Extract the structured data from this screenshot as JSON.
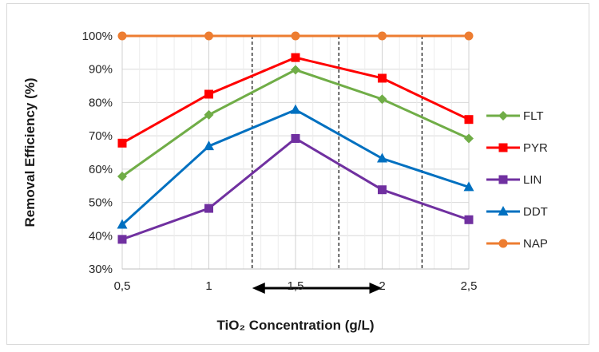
{
  "chart_data": {
    "type": "line",
    "title": "",
    "xlabel": "TiO₂ Concentration (g/L)",
    "ylabel": "Removal Efficiency (%)",
    "x": [
      0.5,
      1,
      1.5,
      2,
      2.5
    ],
    "x_tick_labels": [
      "0,5",
      "1",
      "1,5",
      "2",
      "2,5"
    ],
    "ylim": [
      30,
      100
    ],
    "y_ticks": [
      30,
      40,
      50,
      60,
      70,
      80,
      90,
      100
    ],
    "y_tick_labels": [
      "30%",
      "40%",
      "50%",
      "60%",
      "70%",
      "80%",
      "90%",
      "100%"
    ],
    "grid": true,
    "legend_position": "right",
    "series": [
      {
        "name": "FLT",
        "values": [
          57.8,
          76.3,
          89.8,
          81,
          69.2
        ],
        "color": "#70ad47",
        "marker": "diamond"
      },
      {
        "name": "PYR",
        "values": [
          67.8,
          82.5,
          93.5,
          87.3,
          74.9
        ],
        "color": "#ff0000",
        "marker": "square"
      },
      {
        "name": "LIN",
        "values": [
          38.9,
          48.2,
          69.2,
          53.8,
          44.8
        ],
        "color": "#7030a0",
        "marker": "square"
      },
      {
        "name": "DDT",
        "values": [
          43.3,
          66.9,
          77.8,
          63.2,
          54.6
        ],
        "color": "#0070c0",
        "marker": "triangle"
      },
      {
        "name": "NAP",
        "values": [
          100,
          100,
          100,
          100,
          100
        ],
        "color": "#ed7d31",
        "marker": "circle"
      }
    ],
    "annotations": {
      "dashed_lines_x": [
        1.25,
        1.75,
        2.23
      ],
      "double_arrow_x": [
        1.25,
        2.0
      ]
    }
  }
}
